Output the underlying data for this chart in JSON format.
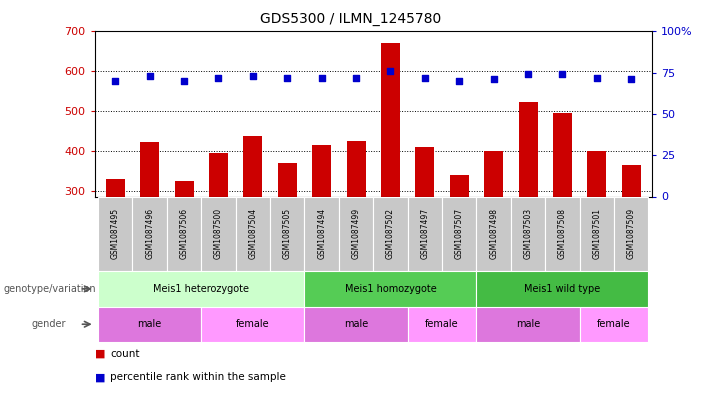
{
  "title": "GDS5300 / ILMN_1245780",
  "samples": [
    "GSM1087495",
    "GSM1087496",
    "GSM1087506",
    "GSM1087500",
    "GSM1087504",
    "GSM1087505",
    "GSM1087494",
    "GSM1087499",
    "GSM1087502",
    "GSM1087497",
    "GSM1087507",
    "GSM1087498",
    "GSM1087503",
    "GSM1087508",
    "GSM1087501",
    "GSM1087509"
  ],
  "counts": [
    328,
    422,
    325,
    395,
    436,
    370,
    415,
    425,
    672,
    410,
    340,
    400,
    522,
    495,
    400,
    363
  ],
  "percentiles": [
    70,
    73,
    70,
    72,
    73,
    72,
    72,
    72,
    76,
    72,
    70,
    71,
    74,
    74,
    72,
    71
  ],
  "ylim_left": [
    285,
    700
  ],
  "ylim_right": [
    0,
    100
  ],
  "yticks_left": [
    300,
    400,
    500,
    600,
    700
  ],
  "yticks_right": [
    0,
    25,
    50,
    75,
    100
  ],
  "bar_color": "#cc0000",
  "dot_color": "#0000cc",
  "background_color": "#ffffff",
  "groups": [
    {
      "label": "Meis1 heterozygote",
      "start": 0,
      "end": 5,
      "color": "#ccffcc"
    },
    {
      "label": "Meis1 homozygote",
      "start": 6,
      "end": 10,
      "color": "#55cc55"
    },
    {
      "label": "Meis1 wild type",
      "start": 11,
      "end": 15,
      "color": "#44bb44"
    }
  ],
  "gender_groups": [
    {
      "label": "male",
      "start": 0,
      "end": 2,
      "color": "#dd77dd"
    },
    {
      "label": "female",
      "start": 3,
      "end": 5,
      "color": "#ff99ff"
    },
    {
      "label": "male",
      "start": 6,
      "end": 8,
      "color": "#dd77dd"
    },
    {
      "label": "female",
      "start": 9,
      "end": 10,
      "color": "#ff99ff"
    },
    {
      "label": "male",
      "start": 11,
      "end": 13,
      "color": "#dd77dd"
    },
    {
      "label": "female",
      "start": 14,
      "end": 15,
      "color": "#ff99ff"
    }
  ],
  "legend_count_label": "count",
  "legend_pct_label": "percentile rank within the sample",
  "genotype_label": "genotype/variation",
  "gender_label": "gender",
  "sample_bg": "#c8c8c8"
}
